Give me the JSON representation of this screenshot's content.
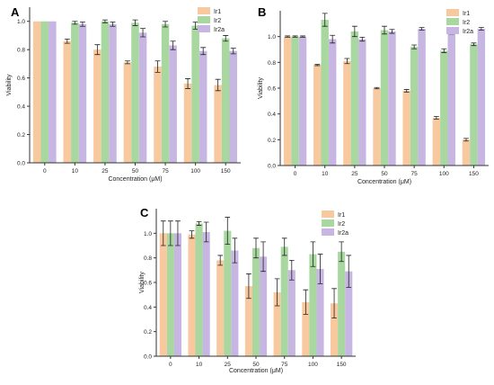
{
  "colors": {
    "Ir1": "#f8c89f",
    "Ir2": "#a8d8a0",
    "Ir2a": "#c8b6e2",
    "axis": "#333333"
  },
  "chart_data": [
    {
      "type": "bar",
      "panel_label": "A",
      "categories": [
        "0",
        "10",
        "25",
        "50",
        "75",
        "100",
        "150"
      ],
      "xlabel": "Concentration (μM)",
      "ylabel": "Viability",
      "ylim": [
        0,
        1.1
      ],
      "yticks": [
        0.0,
        0.2,
        0.4,
        0.6,
        0.8,
        1.0
      ],
      "grid": false,
      "legend_position": "top-right",
      "series": [
        {
          "name": "Ir1",
          "values": [
            1.0,
            0.86,
            0.8,
            0.71,
            0.68,
            0.56,
            0.55
          ],
          "errors": [
            0.0,
            0.015,
            0.035,
            0.01,
            0.04,
            0.035,
            0.04
          ]
        },
        {
          "name": "Ir2",
          "values": [
            1.0,
            0.99,
            1.0,
            0.99,
            0.98,
            0.97,
            0.88
          ],
          "errors": [
            0.0,
            0.01,
            0.01,
            0.02,
            0.02,
            0.025,
            0.02
          ]
        },
        {
          "name": "Ir2a",
          "values": [
            1.0,
            0.98,
            0.98,
            0.92,
            0.83,
            0.79,
            0.79
          ],
          "errors": [
            0.0,
            0.015,
            0.015,
            0.03,
            0.03,
            0.025,
            0.02
          ]
        }
      ]
    },
    {
      "type": "bar",
      "panel_label": "B",
      "categories": [
        "0",
        "10",
        "25",
        "50",
        "75",
        "100",
        "150"
      ],
      "xlabel": "Concentration (μM)",
      "ylabel": "Viability",
      "ylim": [
        0,
        1.2
      ],
      "yticks": [
        0.0,
        0.2,
        0.4,
        0.6,
        0.8,
        1.0
      ],
      "grid": false,
      "legend_position": "top-right",
      "series": [
        {
          "name": "Ir1",
          "values": [
            1.0,
            0.78,
            0.81,
            0.6,
            0.58,
            0.37,
            0.2
          ],
          "errors": [
            0.005,
            0.005,
            0.02,
            0.005,
            0.01,
            0.01,
            0.01
          ]
        },
        {
          "name": "Ir2",
          "values": [
            1.0,
            1.13,
            1.04,
            1.05,
            0.92,
            0.89,
            0.94
          ],
          "errors": [
            0.005,
            0.05,
            0.04,
            0.03,
            0.015,
            0.015,
            0.01
          ]
        },
        {
          "name": "Ir2a",
          "values": [
            1.0,
            0.98,
            0.98,
            1.04,
            1.06,
            1.03,
            1.06
          ],
          "errors": [
            0.005,
            0.03,
            0.015,
            0.015,
            0.01,
            0.01,
            0.01
          ]
        }
      ]
    },
    {
      "type": "bar",
      "panel_label": "C",
      "categories": [
        "0",
        "10",
        "25",
        "50",
        "75",
        "100",
        "150"
      ],
      "xlabel": "Concentration (μM)",
      "ylabel": "Viability",
      "ylim": [
        0,
        1.2
      ],
      "yticks": [
        0.0,
        0.2,
        0.4,
        0.6,
        0.8,
        1.0
      ],
      "grid": false,
      "legend_position": "top-right",
      "series": [
        {
          "name": "Ir1",
          "values": [
            1.0,
            0.99,
            0.78,
            0.57,
            0.52,
            0.44,
            0.43
          ],
          "errors": [
            0.1,
            0.03,
            0.04,
            0.1,
            0.11,
            0.1,
            0.12
          ]
        },
        {
          "name": "Ir2",
          "values": [
            1.0,
            1.08,
            1.02,
            0.88,
            0.89,
            0.83,
            0.85
          ],
          "errors": [
            0.1,
            0.015,
            0.11,
            0.08,
            0.07,
            0.1,
            0.08
          ]
        },
        {
          "name": "Ir2a",
          "values": [
            1.0,
            1.01,
            0.86,
            0.81,
            0.7,
            0.71,
            0.69
          ],
          "errors": [
            0.1,
            0.08,
            0.1,
            0.12,
            0.08,
            0.12,
            0.13
          ]
        }
      ]
    }
  ]
}
